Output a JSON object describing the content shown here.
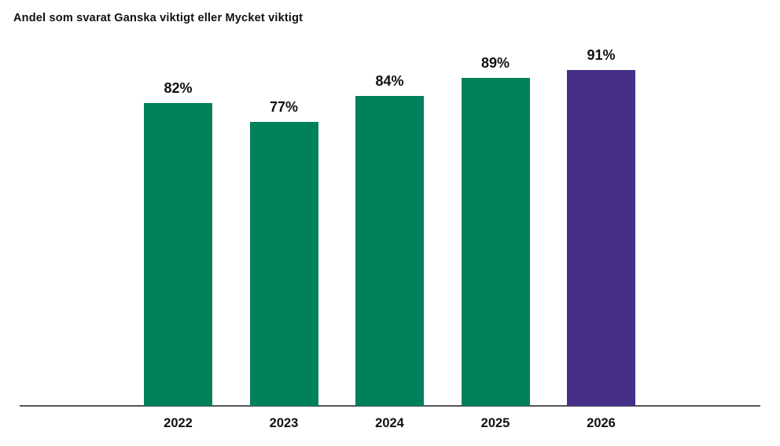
{
  "chart_data": {
    "type": "bar",
    "title": "Andel som svarat Ganska viktigt eller Mycket viktigt",
    "categories": [
      "2022",
      "2023",
      "2024",
      "2025",
      "2026"
    ],
    "values": [
      82,
      77,
      84,
      89,
      91
    ],
    "value_labels": [
      "82%",
      "77%",
      "84%",
      "89%",
      "91%"
    ],
    "unit": "%",
    "xlabel": "",
    "ylabel": "",
    "ylim": [
      0,
      100
    ],
    "grid": false,
    "legend": "none",
    "highlight_index": 4,
    "colors": {
      "bar_default": "#00815C",
      "bar_highlight": "#463087",
      "axis_line": "#55565B",
      "text": "#111111"
    }
  }
}
